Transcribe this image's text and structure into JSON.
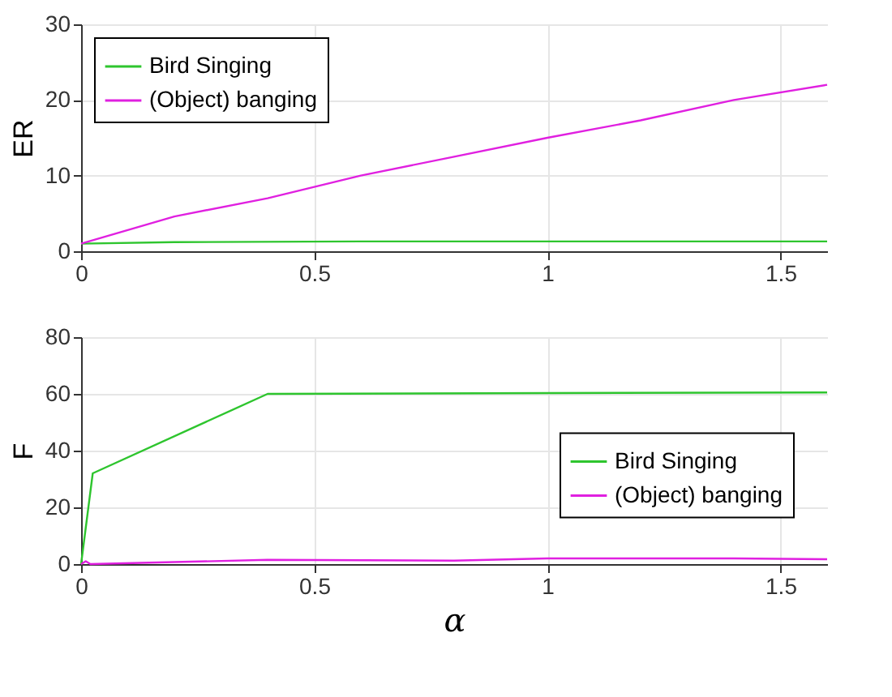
{
  "chart_data": [
    {
      "type": "line",
      "ylabel": "ER",
      "xlim": [
        0,
        1.6
      ],
      "xticks": [
        0,
        0.5,
        1,
        1.5
      ],
      "ylim": [
        0,
        30
      ],
      "yticks": [
        0,
        10,
        20,
        30
      ],
      "grid": true,
      "legend": "top left",
      "series": [
        {
          "name": "Bird Singing",
          "color": "#2ec52e",
          "x": [
            0,
            0.2,
            0.6,
            1.0,
            1.6
          ],
          "values": [
            1,
            1.2,
            1.3,
            1.3,
            1.3
          ]
        },
        {
          "name": "(Object) banging",
          "color": "#e020e0",
          "x": [
            0,
            0.2,
            0.4,
            0.6,
            0.8,
            1.0,
            1.2,
            1.4,
            1.6
          ],
          "values": [
            1,
            4.6,
            7,
            10,
            12.5,
            15,
            17.3,
            20,
            22
          ]
        }
      ]
    },
    {
      "type": "line",
      "ylabel": "F",
      "xlabel": "α",
      "xlim": [
        0,
        1.6
      ],
      "xticks": [
        0,
        0.5,
        1,
        1.5
      ],
      "ylim": [
        0,
        80
      ],
      "yticks": [
        0,
        20,
        40,
        60,
        80
      ],
      "grid": true,
      "legend": "right",
      "series": [
        {
          "name": "Bird Singing",
          "color": "#2ec52e",
          "x": [
            0,
            0.025,
            0.4,
            1.0,
            1.6
          ],
          "values": [
            0,
            32,
            60,
            60.3,
            60.5
          ]
        },
        {
          "name": "(Object) banging",
          "color": "#e020e0",
          "x": [
            0,
            0.01,
            0.02,
            0.4,
            0.8,
            1.0,
            1.4,
            1.6
          ],
          "values": [
            0,
            1,
            0,
            1.5,
            1.2,
            2,
            2,
            1.7
          ]
        }
      ]
    }
  ]
}
